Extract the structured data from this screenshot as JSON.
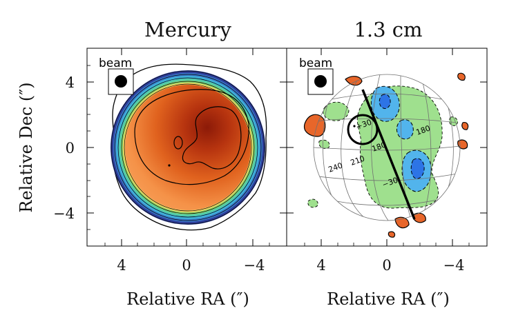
{
  "figure": {
    "panels": [
      {
        "title": "Mercury",
        "beam_label": "beam"
      },
      {
        "title": "1.3 cm",
        "beam_label": "beam"
      }
    ],
    "y_axis": {
      "label": "Relative Dec (″)",
      "ticks": [
        "4",
        "0",
        "−4"
      ]
    },
    "x_axis": {
      "label": "Relative RA (″)",
      "ticks": [
        "4",
        "0",
        "−4"
      ]
    },
    "grid_labels": {
      "lat_plus": "+30",
      "lat_minus": "−30",
      "lon_240": "240",
      "lon_210": "210",
      "lon_180_left": "180",
      "lon_180_right": "180"
    },
    "colors": {
      "disk_core": "#8c1a08",
      "disk_mid": "#ec7a2e",
      "disk_edge": "#2e3e9a",
      "residual_positive": "#e8662a",
      "residual_negative_cyan": "#52b4ec",
      "residual_negative_blue": "#2d74e6",
      "residual_low": "#9fe08e"
    }
  }
}
